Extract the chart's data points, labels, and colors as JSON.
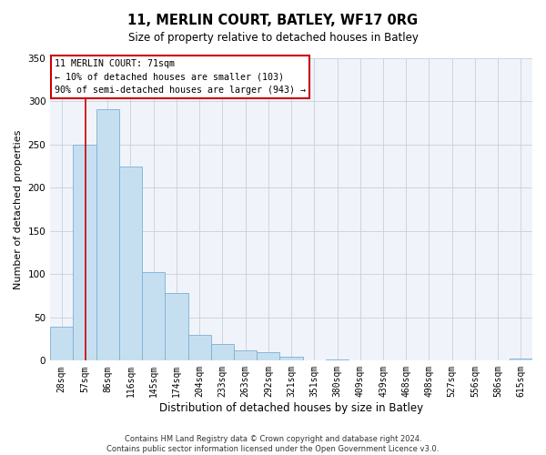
{
  "title1": "11, MERLIN COURT, BATLEY, WF17 0RG",
  "title2": "Size of property relative to detached houses in Batley",
  "xlabel": "Distribution of detached houses by size in Batley",
  "ylabel": "Number of detached properties",
  "footer1": "Contains HM Land Registry data © Crown copyright and database right 2024.",
  "footer2": "Contains public sector information licensed under the Open Government Licence v3.0.",
  "bar_labels": [
    "28sqm",
    "57sqm",
    "86sqm",
    "116sqm",
    "145sqm",
    "174sqm",
    "204sqm",
    "233sqm",
    "263sqm",
    "292sqm",
    "321sqm",
    "351sqm",
    "380sqm",
    "409sqm",
    "439sqm",
    "468sqm",
    "498sqm",
    "527sqm",
    "556sqm",
    "586sqm",
    "615sqm"
  ],
  "bar_values": [
    39,
    250,
    291,
    225,
    103,
    78,
    30,
    19,
    12,
    10,
    5,
    0,
    1,
    0,
    0,
    0,
    0,
    0,
    0,
    0,
    2
  ],
  "bar_color": "#c6dff0",
  "bar_edgecolor": "#7bafd4",
  "vline_x": 1.52,
  "vline_color": "#cc0000",
  "annotation_title": "11 MERLIN COURT: 71sqm",
  "annotation_line1": "← 10% of detached houses are smaller (103)",
  "annotation_line2": "90% of semi-detached houses are larger (943) →",
  "annotation_box_facecolor": "white",
  "annotation_box_edgecolor": "#cc0000",
  "ylim": [
    0,
    350
  ],
  "yticks": [
    0,
    50,
    100,
    150,
    200,
    250,
    300,
    350
  ],
  "bg_color": "#f0f4fa",
  "fig_bg": "white",
  "title1_fontsize": 10.5,
  "title2_fontsize": 8.5,
  "xlabel_fontsize": 8.5,
  "ylabel_fontsize": 8,
  "tick_fontsize": 7,
  "footer_fontsize": 6
}
